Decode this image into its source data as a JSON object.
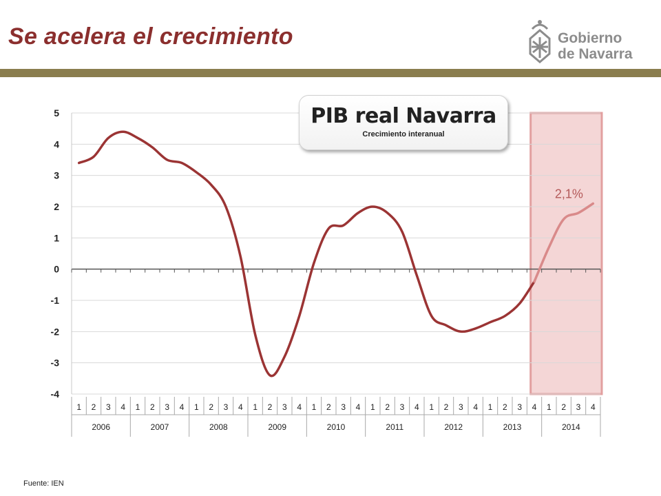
{
  "header": {
    "title": "Se acelera el crecimiento",
    "logo_line1": "Gobierno",
    "logo_line2": "de Navarra"
  },
  "callout": {
    "title": "PIB real Navarra",
    "subtitle": "Crecimiento interanual"
  },
  "footer": {
    "source": "Fuente: IEN"
  },
  "colors": {
    "title": "#8b2f2e",
    "header_bar": "#8a7d4e",
    "line": "#9b3434",
    "highlight_fill": "#f4d6d6",
    "highlight_border": "#e2a0a0",
    "annotation": "#b45a5a"
  },
  "chart_data": {
    "type": "line",
    "ylim": [
      -4,
      5
    ],
    "yticks": [
      "5",
      "4",
      "3",
      "2",
      "1",
      "0",
      "-1",
      "-2",
      "-3",
      "-4"
    ],
    "quarter_labels": [
      "1",
      "2",
      "3",
      "4",
      "1",
      "2",
      "3",
      "4",
      "1",
      "2",
      "3",
      "4",
      "1",
      "2",
      "3",
      "4",
      "1",
      "2",
      "3",
      "4",
      "1",
      "2",
      "3",
      "4",
      "1",
      "2",
      "3",
      "4",
      "1",
      "2",
      "3",
      "4",
      "1",
      "2",
      "3",
      "4"
    ],
    "years": [
      "2006",
      "2007",
      "2008",
      "2009",
      "2010",
      "2011",
      "2012",
      "2013",
      "2014"
    ],
    "values": [
      3.4,
      3.6,
      4.2,
      4.4,
      4.2,
      3.9,
      3.5,
      3.4,
      3.1,
      2.7,
      2.0,
      0.4,
      -2.1,
      -3.4,
      -2.8,
      -1.5,
      0.2,
      1.3,
      1.4,
      1.8,
      2.0,
      1.8,
      1.2,
      -0.2,
      -1.5,
      -1.8,
      -2.0,
      -1.9,
      -1.7,
      -1.5,
      -1.1,
      -0.4,
      0.7,
      1.6,
      1.8,
      2.1
    ],
    "highlight_year": "2014",
    "annotation": "2,1%",
    "grid": true
  }
}
